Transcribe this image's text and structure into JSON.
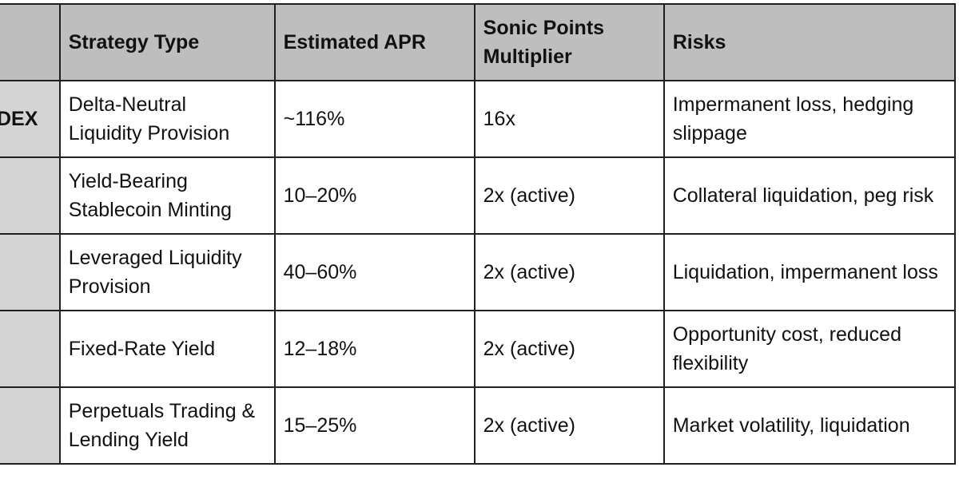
{
  "table": {
    "headers": [
      "",
      "Strategy Type",
      "Estimated APR",
      "Sonic Points Multiplier",
      "Risks"
    ],
    "rows": [
      {
        "platform": "DEX",
        "strategy": "Delta-Neutral Liquidity Provision",
        "apr": "~116%",
        "multiplier": "16x",
        "risks": "Impermanent loss, hedging slippage"
      },
      {
        "platform": "",
        "strategy": "Yield-Bearing Stablecoin Minting",
        "apr": "10–20%",
        "multiplier": "2x (active)",
        "risks": "Collateral liquidation, peg risk"
      },
      {
        "platform": "",
        "strategy": "Leveraged Liquidity Provision",
        "apr": "40–60%",
        "multiplier": "2x (active)",
        "risks": "Liquidation, impermanent loss"
      },
      {
        "platform": "",
        "strategy": "Fixed-Rate Yield",
        "apr": "12–18%",
        "multiplier": "2x (active)",
        "risks": "Opportunity cost, reduced flexibility"
      },
      {
        "platform": "",
        "strategy": "Perpetuals Trading & Lending Yield",
        "apr": "15–25%",
        "multiplier": "2x (active)",
        "risks": "Market volatility, liquidation"
      }
    ]
  },
  "colors": {
    "header_bg": "#bdbebd",
    "first_col_bg": "#d4d4d4",
    "border": "#1f1f1f",
    "cell_bg": "#ffffff"
  }
}
